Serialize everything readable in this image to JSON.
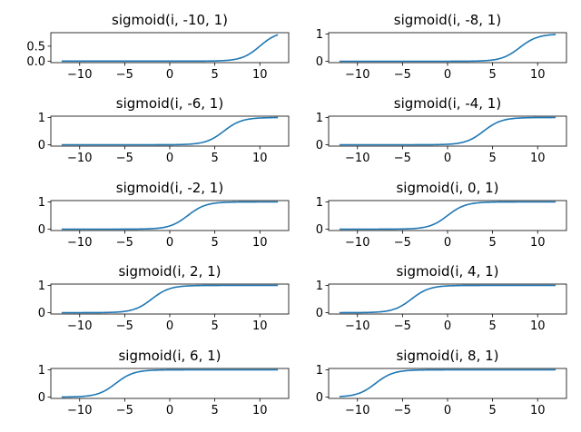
{
  "chart_data": [
    {
      "type": "line",
      "title": "sigmoid(i, -10, 1)",
      "shift": -10,
      "scale": 1,
      "xlim": [
        -13.2,
        13.2
      ],
      "ylim": [
        -0.05,
        0.95
      ],
      "xticks": [
        -10,
        -5,
        0,
        5,
        10
      ],
      "xtick_labels": [
        "−10",
        "−5",
        "0",
        "5",
        "10"
      ],
      "yticks": [
        0.0,
        0.5
      ],
      "ytick_labels": [
        "0.0",
        "0.5"
      ]
    },
    {
      "type": "line",
      "title": "sigmoid(i, -8, 1)",
      "shift": -8,
      "scale": 1,
      "xlim": [
        -13.2,
        13.2
      ],
      "ylim": [
        -0.05,
        1.05
      ],
      "xticks": [
        -10,
        -5,
        0,
        5,
        10
      ],
      "xtick_labels": [
        "−10",
        "−5",
        "0",
        "5",
        "10"
      ],
      "yticks": [
        0,
        1
      ],
      "ytick_labels": [
        "0",
        "1"
      ]
    },
    {
      "type": "line",
      "title": "sigmoid(i, -6, 1)",
      "shift": -6,
      "scale": 1,
      "xlim": [
        -13.2,
        13.2
      ],
      "ylim": [
        -0.05,
        1.05
      ],
      "xticks": [
        -10,
        -5,
        0,
        5,
        10
      ],
      "xtick_labels": [
        "−10",
        "−5",
        "0",
        "5",
        "10"
      ],
      "yticks": [
        0,
        1
      ],
      "ytick_labels": [
        "0",
        "1"
      ]
    },
    {
      "type": "line",
      "title": "sigmoid(i, -4, 1)",
      "shift": -4,
      "scale": 1,
      "xlim": [
        -13.2,
        13.2
      ],
      "ylim": [
        -0.05,
        1.05
      ],
      "xticks": [
        -10,
        -5,
        0,
        5,
        10
      ],
      "xtick_labels": [
        "−10",
        "−5",
        "0",
        "5",
        "10"
      ],
      "yticks": [
        0,
        1
      ],
      "ytick_labels": [
        "0",
        "1"
      ]
    },
    {
      "type": "line",
      "title": "sigmoid(i, -2, 1)",
      "shift": -2,
      "scale": 1,
      "xlim": [
        -13.2,
        13.2
      ],
      "ylim": [
        -0.05,
        1.05
      ],
      "xticks": [
        -10,
        -5,
        0,
        5,
        10
      ],
      "xtick_labels": [
        "−10",
        "−5",
        "0",
        "5",
        "10"
      ],
      "yticks": [
        0,
        1
      ],
      "ytick_labels": [
        "0",
        "1"
      ]
    },
    {
      "type": "line",
      "title": "sigmoid(i, 0, 1)",
      "shift": 0,
      "scale": 1,
      "xlim": [
        -13.2,
        13.2
      ],
      "ylim": [
        -0.05,
        1.05
      ],
      "xticks": [
        -10,
        -5,
        0,
        5,
        10
      ],
      "xtick_labels": [
        "−10",
        "−5",
        "0",
        "5",
        "10"
      ],
      "yticks": [
        0,
        1
      ],
      "ytick_labels": [
        "0",
        "1"
      ]
    },
    {
      "type": "line",
      "title": "sigmoid(i, 2, 1)",
      "shift": 2,
      "scale": 1,
      "xlim": [
        -13.2,
        13.2
      ],
      "ylim": [
        -0.05,
        1.05
      ],
      "xticks": [
        -10,
        -5,
        0,
        5,
        10
      ],
      "xtick_labels": [
        "−10",
        "−5",
        "0",
        "5",
        "10"
      ],
      "yticks": [
        0,
        1
      ],
      "ytick_labels": [
        "0",
        "1"
      ]
    },
    {
      "type": "line",
      "title": "sigmoid(i, 4, 1)",
      "shift": 4,
      "scale": 1,
      "xlim": [
        -13.2,
        13.2
      ],
      "ylim": [
        -0.05,
        1.05
      ],
      "xticks": [
        -10,
        -5,
        0,
        5,
        10
      ],
      "xtick_labels": [
        "−10",
        "−5",
        "0",
        "5",
        "10"
      ],
      "yticks": [
        0,
        1
      ],
      "ytick_labels": [
        "0",
        "1"
      ]
    },
    {
      "type": "line",
      "title": "sigmoid(i, 6, 1)",
      "shift": 6,
      "scale": 1,
      "xlim": [
        -13.2,
        13.2
      ],
      "ylim": [
        -0.05,
        1.05
      ],
      "xticks": [
        -10,
        -5,
        0,
        5,
        10
      ],
      "xtick_labels": [
        "−10",
        "−5",
        "0",
        "5",
        "10"
      ],
      "yticks": [
        0,
        1
      ],
      "ytick_labels": [
        "0",
        "1"
      ]
    },
    {
      "type": "line",
      "title": "sigmoid(i, 8, 1)",
      "shift": 8,
      "scale": 1,
      "xlim": [
        -13.2,
        13.2
      ],
      "ylim": [
        -0.05,
        1.05
      ],
      "xticks": [
        -10,
        -5,
        0,
        5,
        10
      ],
      "xtick_labels": [
        "−10",
        "−5",
        "0",
        "5",
        "10"
      ],
      "yticks": [
        0,
        1
      ],
      "ytick_labels": [
        "0",
        "1"
      ]
    }
  ],
  "x_range": [
    -12,
    12
  ],
  "line_color": "#1f77b4"
}
